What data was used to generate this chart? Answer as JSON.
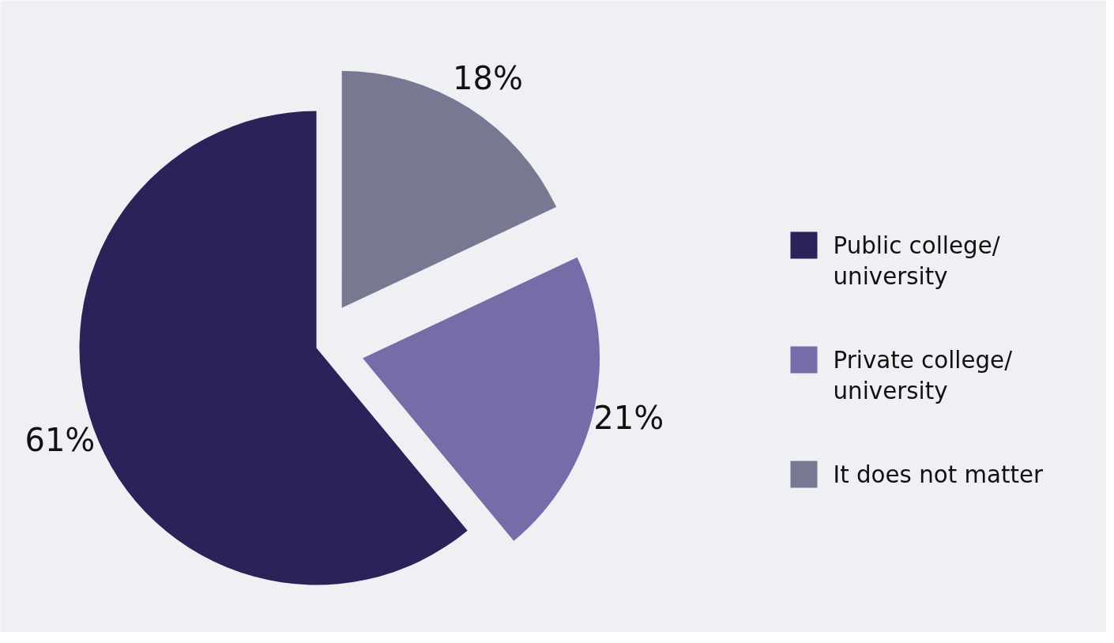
{
  "chart_data": {
    "type": "pie",
    "categories": [
      "Public college/ university",
      "Private college/ university",
      "It does not matter"
    ],
    "values": [
      61,
      21,
      18
    ],
    "colors": [
      "#2d2159",
      "#776ca8",
      "#797893"
    ],
    "value_labels": [
      "61%",
      "21%",
      "18%"
    ],
    "legend": "right"
  }
}
